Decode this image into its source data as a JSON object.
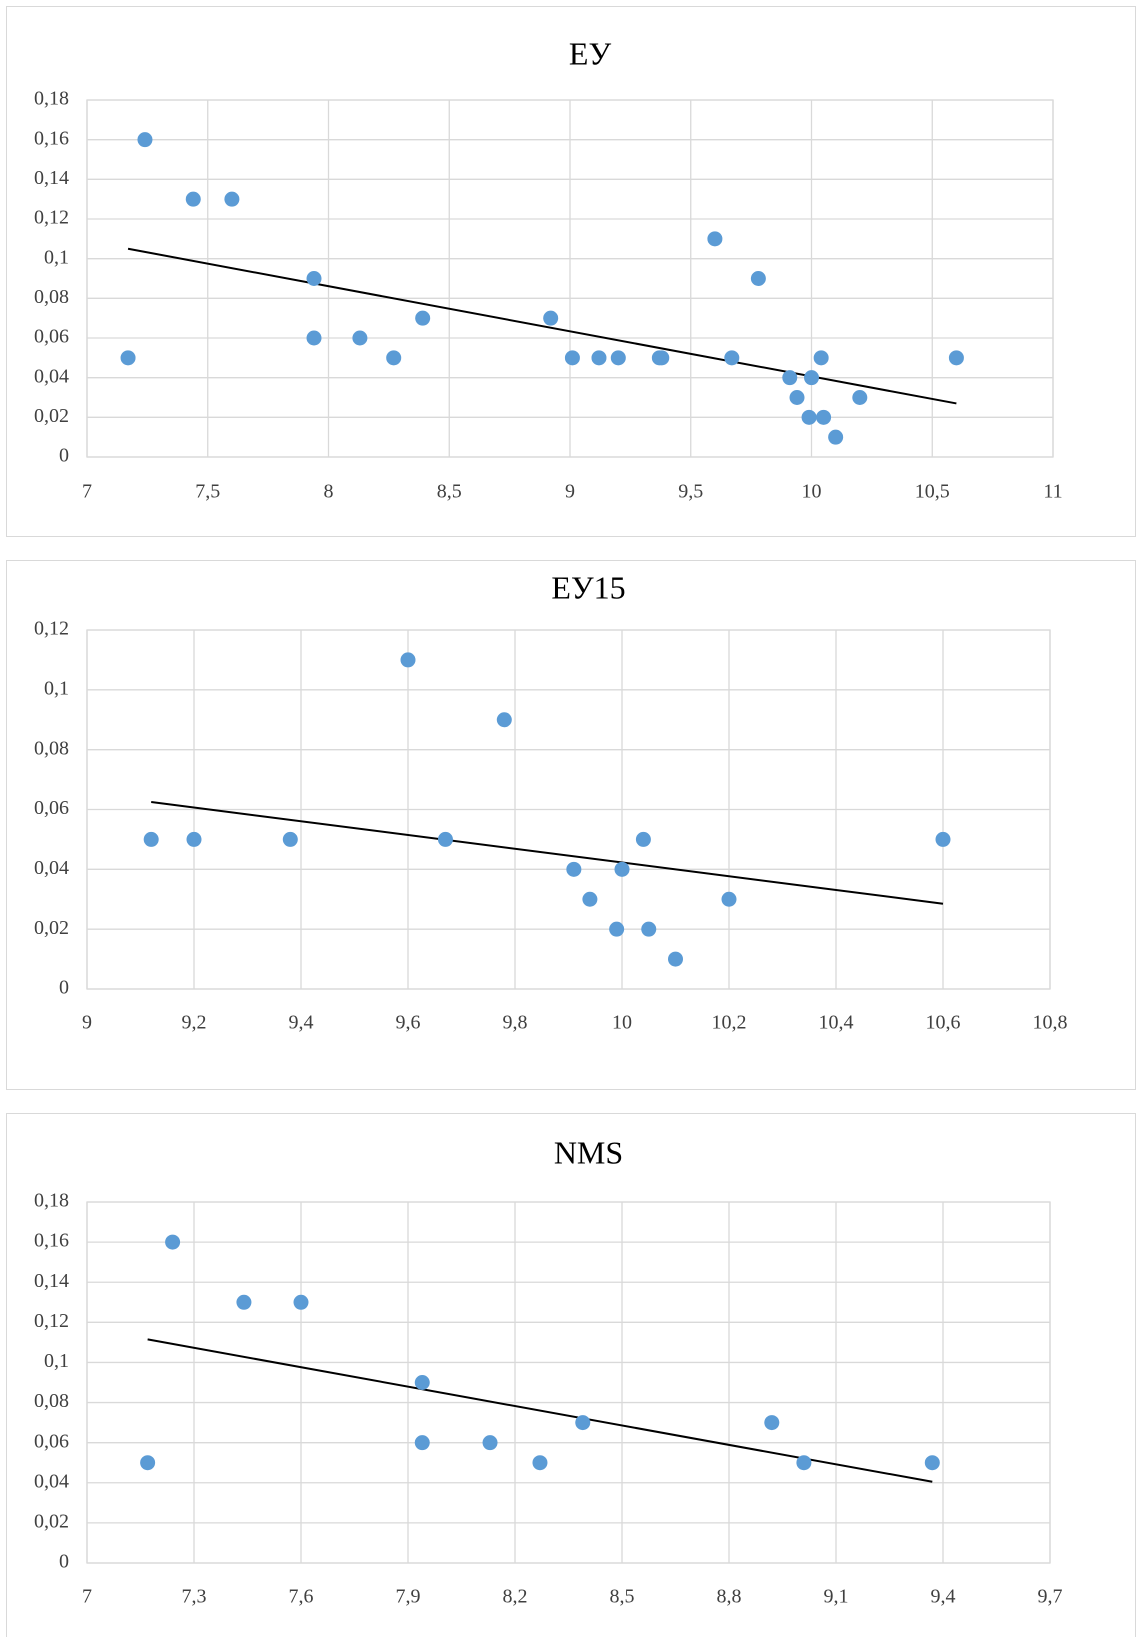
{
  "chart_data": [
    {
      "type": "scatter",
      "title": "ЕУ",
      "xlim": [
        7,
        11
      ],
      "ylim": [
        0,
        0.18
      ],
      "x_ticks": [
        7,
        7.5,
        8,
        8.5,
        9,
        9.5,
        10,
        10.5,
        11
      ],
      "x_tick_labels": [
        "7",
        "7,5",
        "8",
        "8,5",
        "9",
        "9,5",
        "10",
        "10,5",
        "11"
      ],
      "y_ticks": [
        0,
        0.02,
        0.04,
        0.06,
        0.08,
        0.1,
        0.12,
        0.14,
        0.16,
        0.18
      ],
      "y_tick_labels": [
        "0",
        "0,02",
        "0,04",
        "0,06",
        "0,08",
        "0,1",
        "0,12",
        "0,14",
        "0,16",
        "0,18"
      ],
      "grid": true,
      "marker_color": "#5b9bd5",
      "trendline_color": "#000000",
      "points": [
        [
          7.17,
          0.05
        ],
        [
          7.24,
          0.16
        ],
        [
          7.44,
          0.13
        ],
        [
          7.6,
          0.13
        ],
        [
          7.94,
          0.09
        ],
        [
          7.94,
          0.06
        ],
        [
          8.13,
          0.06
        ],
        [
          8.27,
          0.05
        ],
        [
          8.39,
          0.07
        ],
        [
          8.92,
          0.07
        ],
        [
          9.01,
          0.05
        ],
        [
          9.12,
          0.05
        ],
        [
          9.2,
          0.05
        ],
        [
          9.37,
          0.05
        ],
        [
          9.38,
          0.05
        ],
        [
          9.6,
          0.11
        ],
        [
          9.67,
          0.05
        ],
        [
          9.78,
          0.09
        ],
        [
          9.91,
          0.04
        ],
        [
          9.94,
          0.03
        ],
        [
          9.99,
          0.02
        ],
        [
          10.0,
          0.04
        ],
        [
          10.04,
          0.05
        ],
        [
          10.05,
          0.02
        ],
        [
          10.1,
          0.01
        ],
        [
          10.2,
          0.03
        ],
        [
          10.6,
          0.05
        ]
      ],
      "trendline": [
        [
          7.17,
          0.105
        ],
        [
          10.6,
          0.027
        ]
      ]
    },
    {
      "type": "scatter",
      "title": "ЕУ15",
      "xlim": [
        9,
        10.8
      ],
      "ylim": [
        0,
        0.12
      ],
      "x_ticks": [
        9,
        9.2,
        9.4,
        9.6,
        9.8,
        10,
        10.2,
        10.4,
        10.6,
        10.8
      ],
      "x_tick_labels": [
        "9",
        "9,2",
        "9,4",
        "9,6",
        "9,8",
        "10",
        "10,2",
        "10,4",
        "10,6",
        "10,8"
      ],
      "y_ticks": [
        0,
        0.02,
        0.04,
        0.06,
        0.08,
        0.1,
        0.12
      ],
      "y_tick_labels": [
        "0",
        "0,02",
        "0,04",
        "0,06",
        "0,08",
        "0,1",
        "0,12"
      ],
      "grid": true,
      "marker_color": "#5b9bd5",
      "trendline_color": "#000000",
      "points": [
        [
          9.12,
          0.05
        ],
        [
          9.2,
          0.05
        ],
        [
          9.38,
          0.05
        ],
        [
          9.6,
          0.11
        ],
        [
          9.67,
          0.05
        ],
        [
          9.78,
          0.09
        ],
        [
          9.91,
          0.04
        ],
        [
          9.94,
          0.03
        ],
        [
          9.99,
          0.02
        ],
        [
          10.0,
          0.04
        ],
        [
          10.04,
          0.05
        ],
        [
          10.05,
          0.02
        ],
        [
          10.1,
          0.01
        ],
        [
          10.2,
          0.03
        ],
        [
          10.6,
          0.05
        ]
      ],
      "trendline": [
        [
          9.12,
          0.0625
        ],
        [
          10.6,
          0.0285
        ]
      ]
    },
    {
      "type": "scatter",
      "title": "NMS",
      "xlim": [
        7,
        9.7
      ],
      "ylim": [
        0,
        0.18
      ],
      "x_ticks": [
        7,
        7.3,
        7.6,
        7.9,
        8.2,
        8.5,
        8.8,
        9.1,
        9.4,
        9.7
      ],
      "x_tick_labels": [
        "7",
        "7,3",
        "7,6",
        "7,9",
        "8,2",
        "8,5",
        "8,8",
        "9,1",
        "9,4",
        "9,7"
      ],
      "y_ticks": [
        0,
        0.02,
        0.04,
        0.06,
        0.08,
        0.1,
        0.12,
        0.14,
        0.16,
        0.18
      ],
      "y_tick_labels": [
        "0",
        "0,02",
        "0,04",
        "0,06",
        "0,08",
        "0,1",
        "0,12",
        "0,14",
        "0,16",
        "0,18"
      ],
      "grid": true,
      "marker_color": "#5b9bd5",
      "trendline_color": "#000000",
      "points": [
        [
          7.17,
          0.05
        ],
        [
          7.24,
          0.16
        ],
        [
          7.44,
          0.13
        ],
        [
          7.6,
          0.13
        ],
        [
          7.94,
          0.09
        ],
        [
          7.94,
          0.06
        ],
        [
          8.13,
          0.06
        ],
        [
          8.27,
          0.05
        ],
        [
          8.39,
          0.07
        ],
        [
          8.92,
          0.07
        ],
        [
          9.01,
          0.05
        ],
        [
          9.37,
          0.05
        ]
      ],
      "trendline": [
        [
          7.17,
          0.1115
        ],
        [
          9.37,
          0.0405
        ]
      ]
    }
  ]
}
